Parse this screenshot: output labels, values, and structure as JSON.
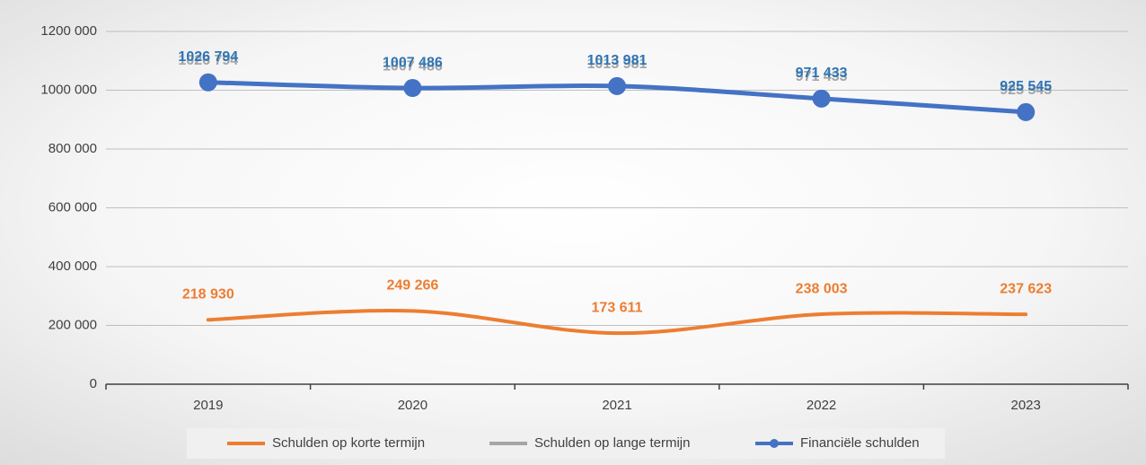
{
  "chart_data": {
    "type": "line",
    "categories": [
      "2019",
      "2020",
      "2021",
      "2022",
      "2023"
    ],
    "series": [
      {
        "name": "Schulden op korte termijn",
        "color": "#ed7d31",
        "values": [
          218930,
          249266,
          173611,
          238003,
          237623
        ],
        "value_labels": [
          "218 930",
          "249 266",
          "173 611",
          "238 003",
          "237 623"
        ]
      },
      {
        "name": "Schulden op lange termijn",
        "color": "#a5a5a5",
        "values": [
          1026794,
          1007486,
          1013981,
          971433,
          925545
        ],
        "value_labels": [
          "1026 794",
          "1007 486",
          "1013 981",
          "971 433",
          "925 545"
        ]
      },
      {
        "name": "Financiële schulden",
        "color": "#4472c4",
        "values": [
          1026794,
          1007486,
          1013981,
          971433,
          925545
        ],
        "value_labels": [
          "1026 794",
          "1007 486",
          "1013 981",
          "971 433",
          "925 545"
        ],
        "markers": true
      }
    ],
    "ylim": [
      0,
      1200000
    ],
    "yticks": [
      0,
      {
        "value": 200000,
        "label": "200 000"
      },
      {
        "value": 400000,
        "label": "400 000"
      },
      {
        "value": 600000,
        "label": "600 000"
      },
      {
        "value": 800000,
        "label": "800 000"
      },
      {
        "value": 1000000,
        "label": "1000 000"
      },
      {
        "value": 1200000,
        "label": "1200 000"
      }
    ],
    "grid": true,
    "legend": "bottom"
  }
}
